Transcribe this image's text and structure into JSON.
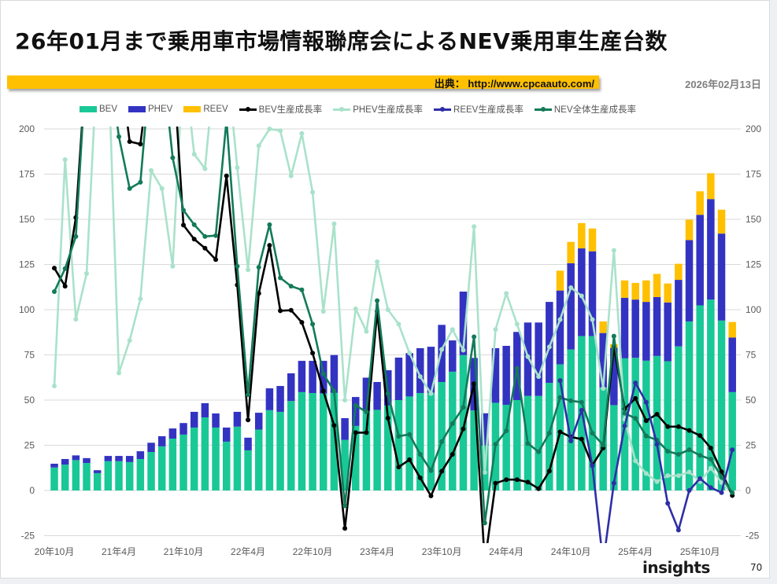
{
  "header": {
    "title": "26年01月まで乗用車市場情報聯席会によるNEV乗用車生産台数",
    "source": "出典： http://www.cpcaauto.com/",
    "date": "2026年02月13日"
  },
  "footer": {
    "logo": "insights",
    "page_number": "70"
  },
  "chart_data": {
    "type": "bar+line",
    "categories": [
      "20年10月",
      "20年11月",
      "20年12月",
      "21年1月",
      "21年2月",
      "21年3月",
      "21年4月",
      "21年5月",
      "21年6月",
      "21年7月",
      "21年8月",
      "21年9月",
      "21年10月",
      "21年11月",
      "21年12月",
      "22年1月",
      "22年2月",
      "22年3月",
      "22年4月",
      "22年5月",
      "22年6月",
      "22年7月",
      "22年8月",
      "22年9月",
      "22年10月",
      "22年11月",
      "22年12月",
      "23年1月",
      "23年2月",
      "23年3月",
      "23年4月",
      "23年5月",
      "23年6月",
      "23年7月",
      "23年8月",
      "23年9月",
      "23年10月",
      "23年11月",
      "23年12月",
      "24年1月",
      "24年2月",
      "24年3月",
      "24年4月",
      "24年5月",
      "24年6月",
      "24年7月",
      "24年8月",
      "24年9月",
      "24年10月",
      "24年11月",
      "24年12月",
      "25年1月",
      "25年2月",
      "25年3月",
      "25年4月",
      "25年5月",
      "25年6月",
      "25年7月",
      "25年8月",
      "25年9月",
      "25年10月",
      "25年11月",
      "25年12月",
      "26年1月"
    ],
    "x_tick_labels": [
      "20年10月",
      "21年4月",
      "21年10月",
      "22年4月",
      "22年10月",
      "23年4月",
      "23年10月",
      "24年4月",
      "24年10月",
      "25年4月",
      "25年10月"
    ],
    "ylim": [
      -25,
      200
    ],
    "y_ticks": [
      -25,
      0,
      25,
      50,
      75,
      100,
      125,
      150,
      175,
      200
    ],
    "y_axes": "left and right (mirrored)",
    "grid": true,
    "legend": "top",
    "bar_series": [
      {
        "name": "BEV",
        "color": "#19c897",
        "values": [
          12.7,
          14.3,
          16.8,
          15.2,
          9.6,
          16.2,
          16.2,
          15.7,
          17.4,
          21.3,
          24.4,
          28.7,
          30.9,
          34.8,
          40.4,
          34.8,
          27,
          35.3,
          22.2,
          33.7,
          44.4,
          43.5,
          49.5,
          54.4,
          53.9,
          53.6,
          54,
          28,
          35.7,
          44,
          44.6,
          47,
          50,
          52,
          53.9,
          54,
          60,
          65.7,
          74.9,
          44.3,
          24.8,
          48.5,
          47.4,
          50,
          52.3,
          52.3,
          59.5,
          69.8,
          78,
          85.4,
          85.4,
          57,
          47.2,
          73.1,
          73.4,
          71.8,
          74.4,
          71.5,
          79.7,
          93.5,
          102.4,
          105.6,
          94,
          54.4
        ]
      },
      {
        "name": "PHEV",
        "color": "#3333c2",
        "values": [
          2.1,
          3.1,
          2.6,
          2.7,
          1.6,
          2.9,
          2.9,
          3.4,
          4.3,
          5.1,
          5.6,
          5.6,
          6.4,
          8.7,
          7.9,
          7.8,
          7.8,
          8.2,
          7,
          9.3,
          12.1,
          14.3,
          15.3,
          17.3,
          17.8,
          18.1,
          20.9,
          12,
          16,
          18.4,
          15.4,
          19.5,
          23.5,
          24,
          24.8,
          25.5,
          31.6,
          17.3,
          35.1,
          29,
          17.9,
          30.2,
          32.6,
          37.7,
          40.6,
          40.6,
          44.8,
          40.8,
          47.7,
          48.5,
          46.9,
          30.1,
          31.7,
          33.5,
          32.2,
          32.5,
          32.6,
          32.5,
          36.8,
          45,
          50.1,
          55.6,
          48.1,
          30.2
        ]
      },
      {
        "name": "REEV",
        "color": "#ffc000",
        "values": [
          null,
          null,
          null,
          null,
          null,
          null,
          null,
          null,
          null,
          null,
          null,
          null,
          null,
          null,
          null,
          null,
          null,
          null,
          null,
          null,
          null,
          null,
          null,
          null,
          null,
          null,
          null,
          null,
          null,
          null,
          null,
          null,
          null,
          null,
          null,
          null,
          null,
          null,
          null,
          null,
          null,
          null,
          null,
          null,
          null,
          null,
          null,
          11,
          11.8,
          14,
          12.6,
          6.4,
          2,
          9.6,
          9.2,
          11.9,
          12.8,
          10.5,
          8.9,
          11.3,
          13,
          14.3,
          13.2,
          8.6
        ]
      }
    ],
    "line_series": [
      {
        "name": "BEV生産成長率",
        "color": "#000000",
        "values": [
          123,
          113,
          151,
          240,
          240,
          240,
          240,
          193,
          191.6,
          240,
          240,
          240,
          146.8,
          139,
          134,
          127.7,
          174,
          113.7,
          39,
          109,
          135.6,
          99.4,
          99.7,
          93,
          76,
          55,
          36,
          -21,
          32,
          32,
          99,
          40,
          13,
          17,
          7,
          -3,
          10.6,
          20,
          34,
          59,
          -40,
          4,
          6,
          6,
          4.6,
          1,
          10.7,
          32.4,
          29.6,
          28.4,
          14,
          23.5,
          79.7,
          45.2,
          50.9,
          38.6,
          42.2,
          35.3,
          35.3,
          33.2,
          30.4,
          23.5,
          10.4,
          -2.8
        ]
      },
      {
        "name": "PHEV生産成長率",
        "color": "#a9e2cb",
        "values": [
          57.8,
          183,
          94.7,
          120,
          240,
          240,
          65,
          83,
          106,
          177,
          167,
          124,
          240,
          186,
          178,
          240,
          240,
          178.6,
          122,
          190.7,
          200,
          199,
          174,
          197.5,
          165,
          99,
          147.5,
          50,
          100.5,
          88,
          126.5,
          100,
          92,
          76,
          63,
          53.6,
          78,
          89,
          77.6,
          146,
          10,
          89,
          109,
          92,
          74,
          63,
          79.4,
          94.5,
          112.2,
          107.6,
          94.5,
          56.4,
          132.8,
          39.4,
          16.4,
          9.4,
          4.9,
          8.2,
          8.2,
          10.2,
          4.9,
          12.3,
          4.4,
          -1.6
        ]
      },
      {
        "name": "REEV生産成長率",
        "color": "#2e2ea8",
        "values": [
          null,
          null,
          null,
          null,
          null,
          null,
          null,
          null,
          null,
          null,
          null,
          null,
          null,
          null,
          null,
          null,
          null,
          null,
          null,
          null,
          null,
          null,
          null,
          null,
          null,
          null,
          null,
          null,
          null,
          null,
          null,
          null,
          null,
          null,
          null,
          null,
          null,
          null,
          null,
          null,
          null,
          null,
          null,
          null,
          null,
          null,
          null,
          60.8,
          27.4,
          44.4,
          13.6,
          -40,
          4.1,
          35.7,
          59.5,
          48.8,
          25.5,
          -7.1,
          -21.9,
          0,
          6.6,
          1.6,
          -1.2,
          22.5
        ]
      },
      {
        "name": "NEV全体生産成長率",
        "color": "#137a5a",
        "values": [
          110,
          122.7,
          140.5,
          240,
          240,
          240,
          195.7,
          167,
          170.5,
          240,
          240,
          184,
          155,
          147,
          140.5,
          141,
          205,
          124,
          53,
          123.5,
          147,
          117.6,
          113,
          111,
          92,
          64.5,
          55,
          -8.5,
          47,
          43.5,
          105,
          53.6,
          30,
          31,
          20,
          11,
          27,
          37,
          46,
          85,
          -18,
          25.6,
          33,
          67.5,
          26,
          21.4,
          31.7,
          51.4,
          49.6,
          48.8,
          31.7,
          25.1,
          85.4,
          42.7,
          39.9,
          30.1,
          27.9,
          21.7,
          20,
          22.5,
          19.4,
          17.3,
          7.4,
          -1.2
        ]
      }
    ]
  }
}
